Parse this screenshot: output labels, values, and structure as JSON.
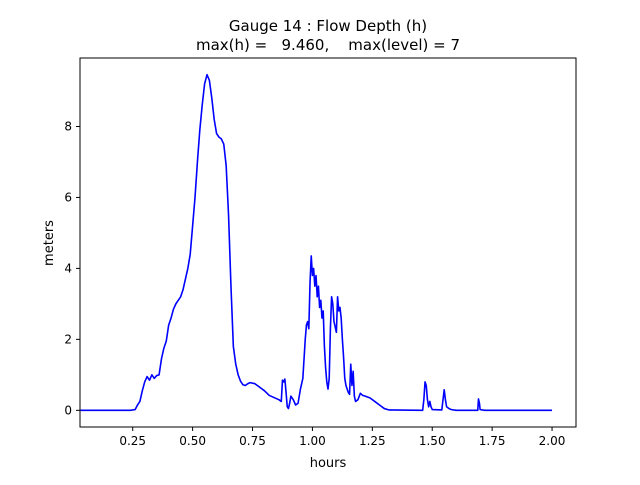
{
  "chart_data": {
    "type": "line",
    "title_line1": "Gauge 14 : Flow Depth (h)",
    "title_line2": "max(h) =   9.460,    max(level) = 7",
    "xlabel": "hours",
    "ylabel": "meters",
    "xlim": [
      0.03,
      2.1
    ],
    "ylim": [
      -0.47,
      9.93
    ],
    "x_ticks": [
      0.25,
      0.5,
      0.75,
      1.0,
      1.25,
      1.5,
      1.75,
      2.0
    ],
    "x_tick_labels": [
      "0.25",
      "0.50",
      "0.75",
      "1.00",
      "1.25",
      "1.50",
      "1.75",
      "2.00"
    ],
    "y_ticks": [
      0,
      2,
      4,
      6,
      8
    ],
    "y_tick_labels": [
      "0",
      "2",
      "4",
      "6",
      "8"
    ],
    "grid": false,
    "legend": "none",
    "series": [
      {
        "color": "#0000ff",
        "points": [
          [
            0.03,
            0.0
          ],
          [
            0.24,
            0.0
          ],
          [
            0.26,
            0.02
          ],
          [
            0.27,
            0.15
          ],
          [
            0.28,
            0.25
          ],
          [
            0.29,
            0.55
          ],
          [
            0.3,
            0.8
          ],
          [
            0.31,
            0.95
          ],
          [
            0.32,
            0.85
          ],
          [
            0.33,
            1.0
          ],
          [
            0.34,
            0.9
          ],
          [
            0.35,
            0.98
          ],
          [
            0.36,
            1.0
          ],
          [
            0.37,
            1.45
          ],
          [
            0.38,
            1.75
          ],
          [
            0.39,
            1.95
          ],
          [
            0.4,
            2.4
          ],
          [
            0.41,
            2.6
          ],
          [
            0.42,
            2.85
          ],
          [
            0.43,
            3.0
          ],
          [
            0.44,
            3.1
          ],
          [
            0.45,
            3.2
          ],
          [
            0.46,
            3.4
          ],
          [
            0.47,
            3.7
          ],
          [
            0.48,
            4.0
          ],
          [
            0.49,
            4.4
          ],
          [
            0.5,
            5.2
          ],
          [
            0.51,
            6.0
          ],
          [
            0.52,
            7.0
          ],
          [
            0.53,
            7.9
          ],
          [
            0.54,
            8.6
          ],
          [
            0.55,
            9.2
          ],
          [
            0.56,
            9.46
          ],
          [
            0.57,
            9.3
          ],
          [
            0.58,
            8.8
          ],
          [
            0.59,
            8.2
          ],
          [
            0.6,
            7.8
          ],
          [
            0.61,
            7.7
          ],
          [
            0.62,
            7.65
          ],
          [
            0.63,
            7.5
          ],
          [
            0.64,
            6.9
          ],
          [
            0.65,
            5.5
          ],
          [
            0.66,
            3.5
          ],
          [
            0.67,
            1.8
          ],
          [
            0.68,
            1.3
          ],
          [
            0.69,
            1.0
          ],
          [
            0.7,
            0.82
          ],
          [
            0.71,
            0.72
          ],
          [
            0.72,
            0.7
          ],
          [
            0.73,
            0.75
          ],
          [
            0.74,
            0.78
          ],
          [
            0.76,
            0.75
          ],
          [
            0.78,
            0.65
          ],
          [
            0.8,
            0.55
          ],
          [
            0.82,
            0.42
          ],
          [
            0.84,
            0.36
          ],
          [
            0.86,
            0.3
          ],
          [
            0.87,
            0.25
          ],
          [
            0.875,
            0.85
          ],
          [
            0.88,
            0.8
          ],
          [
            0.885,
            0.88
          ],
          [
            0.89,
            0.5
          ],
          [
            0.895,
            0.1
          ],
          [
            0.9,
            0.05
          ],
          [
            0.905,
            0.2
          ],
          [
            0.91,
            0.4
          ],
          [
            0.92,
            0.3
          ],
          [
            0.93,
            0.15
          ],
          [
            0.94,
            0.2
          ],
          [
            0.95,
            0.6
          ],
          [
            0.96,
            0.9
          ],
          [
            0.97,
            2.0
          ],
          [
            0.975,
            2.4
          ],
          [
            0.98,
            2.5
          ],
          [
            0.985,
            2.3
          ],
          [
            0.99,
            3.6
          ],
          [
            0.995,
            4.35
          ],
          [
            1.0,
            3.8
          ],
          [
            1.005,
            4.0
          ],
          [
            1.01,
            3.5
          ],
          [
            1.015,
            3.8
          ],
          [
            1.02,
            3.2
          ],
          [
            1.025,
            3.5
          ],
          [
            1.03,
            2.9
          ],
          [
            1.035,
            3.1
          ],
          [
            1.04,
            2.6
          ],
          [
            1.045,
            2.8
          ],
          [
            1.05,
            1.8
          ],
          [
            1.055,
            1.2
          ],
          [
            1.06,
            0.8
          ],
          [
            1.065,
            0.6
          ],
          [
            1.07,
            0.9
          ],
          [
            1.075,
            2.3
          ],
          [
            1.08,
            3.2
          ],
          [
            1.085,
            3.0
          ],
          [
            1.09,
            2.5
          ],
          [
            1.1,
            2.2
          ],
          [
            1.105,
            3.2
          ],
          [
            1.11,
            2.8
          ],
          [
            1.115,
            2.9
          ],
          [
            1.12,
            2.6
          ],
          [
            1.125,
            2.0
          ],
          [
            1.13,
            1.5
          ],
          [
            1.135,
            0.9
          ],
          [
            1.14,
            0.7
          ],
          [
            1.15,
            0.5
          ],
          [
            1.155,
            0.45
          ],
          [
            1.16,
            1.3
          ],
          [
            1.165,
            0.7
          ],
          [
            1.17,
            1.1
          ],
          [
            1.175,
            0.4
          ],
          [
            1.18,
            0.25
          ],
          [
            1.19,
            0.3
          ],
          [
            1.2,
            0.48
          ],
          [
            1.21,
            0.42
          ],
          [
            1.22,
            0.4
          ],
          [
            1.24,
            0.35
          ],
          [
            1.26,
            0.25
          ],
          [
            1.28,
            0.15
          ],
          [
            1.3,
            0.05
          ],
          [
            1.32,
            0.01
          ],
          [
            1.46,
            0.0
          ],
          [
            1.465,
            0.3
          ],
          [
            1.47,
            0.8
          ],
          [
            1.475,
            0.7
          ],
          [
            1.48,
            0.3
          ],
          [
            1.485,
            0.1
          ],
          [
            1.49,
            0.25
          ],
          [
            1.495,
            0.1
          ],
          [
            1.5,
            0.02
          ],
          [
            1.54,
            0.01
          ],
          [
            1.545,
            0.3
          ],
          [
            1.55,
            0.58
          ],
          [
            1.555,
            0.3
          ],
          [
            1.56,
            0.1
          ],
          [
            1.57,
            0.05
          ],
          [
            1.58,
            0.02
          ],
          [
            1.6,
            0.0
          ],
          [
            1.69,
            0.0
          ],
          [
            1.693,
            0.32
          ],
          [
            1.697,
            0.2
          ],
          [
            1.7,
            0.02
          ],
          [
            1.72,
            0.0
          ],
          [
            2.0,
            0.0
          ]
        ]
      }
    ]
  }
}
